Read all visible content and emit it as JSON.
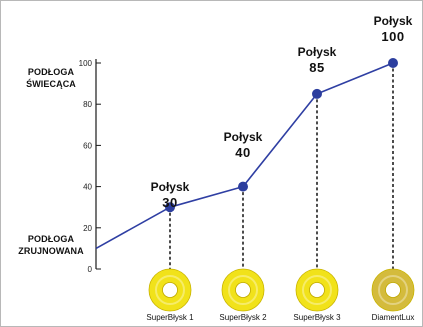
{
  "chart_data": {
    "type": "line",
    "title": "",
    "xlabel": "",
    "ylabel": "",
    "y_top_label": "PODŁOGA\nŚWIECĄCA",
    "y_bottom_label": "PODŁOGA\nZRUJNOWANA",
    "categories": [
      "SuperBłysk 1",
      "SuperBłysk 2",
      "SuperBłysk 3",
      "DiamentLux"
    ],
    "series": [
      {
        "values": [
          30,
          40,
          85,
          100
        ]
      }
    ],
    "annotations": [
      {
        "name": "Połysk",
        "value": "30"
      },
      {
        "name": "Połysk",
        "value": "40"
      },
      {
        "name": "Połysk",
        "value": "85"
      },
      {
        "name": "Połysk",
        "value": "100"
      }
    ],
    "line_start_value": 10,
    "ylim": [
      0,
      100
    ],
    "yticks": [
      "0",
      "20",
      "40",
      "60",
      "80",
      "100"
    ],
    "grid": false,
    "colors": {
      "line": "#2f3fa3",
      "marker": "#2c3e9e",
      "ring": "#f1e21a",
      "ring_last": "#d4bb3c"
    }
  }
}
